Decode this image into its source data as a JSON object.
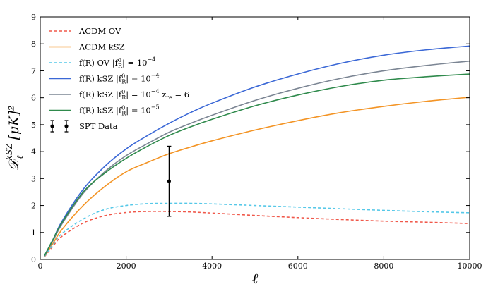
{
  "chart_data": {
    "type": "line",
    "xlabel": "ℓ",
    "ylabel": "𝒟ℓ^kSZ [μK]²",
    "ylabel_main": "𝒟",
    "ylabel_sub": "ℓ",
    "ylabel_sup": "kSZ",
    "ylabel_rest": " [μK]²",
    "xlim": [
      0,
      10000
    ],
    "ylim": [
      0,
      9
    ],
    "xticks": [
      "0",
      "2000",
      "4000",
      "6000",
      "8000",
      "10000"
    ],
    "yticks": [
      "0",
      "1",
      "2",
      "3",
      "4",
      "5",
      "6",
      "7",
      "8",
      "9"
    ],
    "legend_position": "top-left",
    "series": [
      {
        "name": "ΛCDM OV",
        "legend": "ΛCDM OV",
        "color": "#f0584a",
        "style": "dashed",
        "x": [
          100,
          300,
          500,
          1000,
          1500,
          2000,
          2500,
          3000,
          3500,
          4000,
          5000,
          6000,
          7000,
          8000,
          9000,
          10000
        ],
        "y": [
          0.1,
          0.5,
          0.85,
          1.35,
          1.62,
          1.74,
          1.78,
          1.78,
          1.76,
          1.72,
          1.63,
          1.55,
          1.48,
          1.42,
          1.38,
          1.33
        ]
      },
      {
        "name": "ΛCDM kSZ",
        "legend": "ΛCDM kSZ",
        "color": "#f39425",
        "style": "solid",
        "x": [
          100,
          300,
          500,
          1000,
          1500,
          2000,
          2500,
          3000,
          3500,
          4000,
          5000,
          6000,
          7000,
          8000,
          9000,
          10000
        ],
        "y": [
          0.12,
          0.6,
          1.1,
          2.0,
          2.7,
          3.25,
          3.6,
          3.92,
          4.17,
          4.4,
          4.8,
          5.15,
          5.45,
          5.68,
          5.87,
          6.02
        ]
      },
      {
        "name": "f(R) OV |fR0| = 10^-4",
        "legend": "f(R) OV |f",
        "legend_sub": "R",
        "legend_sup": "0",
        "legend_tail": "| = 10",
        "legend_exp": "−4",
        "color": "#55c8e8",
        "style": "dashed",
        "x": [
          100,
          300,
          500,
          1000,
          1500,
          2000,
          2500,
          3000,
          3500,
          4000,
          5000,
          6000,
          7000,
          8000,
          9000,
          10000
        ],
        "y": [
          0.12,
          0.55,
          0.95,
          1.5,
          1.85,
          2.0,
          2.07,
          2.08,
          2.08,
          2.06,
          2.0,
          1.94,
          1.88,
          1.82,
          1.77,
          1.73
        ]
      },
      {
        "name": "f(R) kSZ |fR0| = 10^-4",
        "legend": "f(R) kSZ |f",
        "legend_sub": "R",
        "legend_sup": "0",
        "legend_tail": "| = 10",
        "legend_exp": "−4",
        "color": "#3b68d6",
        "style": "solid",
        "x": [
          100,
          300,
          500,
          1000,
          1500,
          2000,
          2500,
          3000,
          3500,
          4000,
          5000,
          6000,
          7000,
          8000,
          9000,
          10000
        ],
        "y": [
          0.15,
          0.75,
          1.4,
          2.6,
          3.45,
          4.1,
          4.6,
          5.05,
          5.45,
          5.8,
          6.4,
          6.88,
          7.28,
          7.58,
          7.78,
          7.92
        ]
      },
      {
        "name": "f(R) kSZ |fR0| = 10^-4 z_re = 6",
        "legend": "f(R) kSZ |f",
        "legend_sub": "R",
        "legend_sup": "0",
        "legend_tail": "| = 10",
        "legend_exp": "−4",
        "legend_extra": " z",
        "legend_extra_sub": "re",
        "legend_extra_tail": " = 6",
        "color": "#7b8593",
        "style": "solid",
        "x": [
          100,
          300,
          500,
          1000,
          1500,
          2000,
          2500,
          3000,
          3500,
          4000,
          5000,
          6000,
          7000,
          8000,
          9000,
          10000
        ],
        "y": [
          0.14,
          0.7,
          1.3,
          2.45,
          3.25,
          3.85,
          4.3,
          4.72,
          5.05,
          5.35,
          5.9,
          6.35,
          6.72,
          7.0,
          7.2,
          7.36
        ]
      },
      {
        "name": "f(R) kSZ |fR0| = 10^-5",
        "legend": "f(R) kSZ |f",
        "legend_sub": "R",
        "legend_sup": "0",
        "legend_tail": "| = 10",
        "legend_exp": "−5",
        "color": "#2f8a4c",
        "style": "solid",
        "x": [
          100,
          300,
          500,
          1000,
          1500,
          2000,
          2500,
          3000,
          3500,
          4000,
          5000,
          6000,
          7000,
          8000,
          9000,
          10000
        ],
        "y": [
          0.14,
          0.75,
          1.35,
          2.5,
          3.2,
          3.75,
          4.2,
          4.6,
          4.92,
          5.2,
          5.7,
          6.1,
          6.42,
          6.65,
          6.78,
          6.88
        ]
      },
      {
        "name": "SPT Data",
        "legend": "SPT Data",
        "color": "#000000",
        "style": "errorbar",
        "x": [
          3000
        ],
        "y": [
          2.9
        ],
        "yerr_low": [
          1.3
        ],
        "yerr_high": [
          1.3
        ]
      }
    ]
  }
}
